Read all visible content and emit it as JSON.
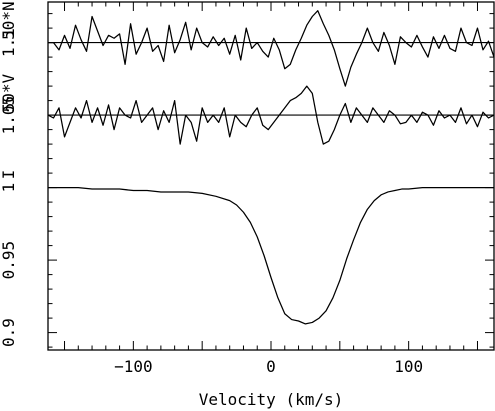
{
  "chart_data": {
    "type": "line",
    "xlabel": "Velocity (km/s)",
    "xlim": [
      -162,
      162
    ],
    "ylim": [
      0.888,
      1.128
    ],
    "x_ticks": [
      -100,
      0,
      100
    ],
    "y_ticks": [
      0.9,
      0.95,
      1,
      1.05,
      1.1
    ],
    "x_tick_labels": [
      "−100",
      "0",
      "100"
    ],
    "y_tick_labels": [
      "0.9",
      "0.95",
      "1",
      "1.05",
      "1.1"
    ],
    "grid": false,
    "reference_lines": [
      {
        "y": 1.1,
        "label": "50*N"
      },
      {
        "y": 1.05,
        "label": "50*V"
      }
    ],
    "curve_labels": [
      {
        "label": "I",
        "y": 1.0
      }
    ],
    "series": [
      {
        "x": [
          -162,
          -158,
          -154,
          -150,
          -146,
          -142,
          -138,
          -134,
          -130,
          -126,
          -122,
          -118,
          -114,
          -110,
          -106,
          -102,
          -98,
          -94,
          -90,
          -86,
          -82,
          -78,
          -74,
          -70,
          -66,
          -62,
          -58,
          -54,
          -50,
          -46,
          -42,
          -38,
          -34,
          -30,
          -26,
          -22,
          -18,
          -14,
          -10,
          -6,
          -2,
          2,
          6,
          10,
          14,
          18,
          22,
          26,
          30,
          34,
          38,
          42,
          46,
          50,
          54,
          58,
          62,
          66,
          70,
          74,
          78,
          82,
          86,
          90,
          94,
          98,
          102,
          106,
          110,
          114,
          118,
          122,
          126,
          130,
          134,
          138,
          142,
          146,
          150,
          154,
          158,
          162
        ],
        "values": [
          1.1,
          1.1,
          1.095,
          1.105,
          1.096,
          1.112,
          1.102,
          1.094,
          1.118,
          1.108,
          1.098,
          1.105,
          1.103,
          1.106,
          1.085,
          1.113,
          1.092,
          1.1,
          1.11,
          1.094,
          1.098,
          1.087,
          1.112,
          1.093,
          1.102,
          1.114,
          1.095,
          1.11,
          1.1,
          1.097,
          1.104,
          1.098,
          1.103,
          1.092,
          1.105,
          1.088,
          1.11,
          1.096,
          1.1,
          1.094,
          1.09,
          1.103,
          1.095,
          1.082,
          1.085,
          1.095,
          1.103,
          1.112,
          1.118,
          1.122,
          1.113,
          1.105,
          1.095,
          1.082,
          1.07,
          1.083,
          1.092,
          1.1,
          1.11,
          1.1,
          1.094,
          1.107,
          1.098,
          1.085,
          1.104,
          1.1,
          1.097,
          1.105,
          1.097,
          1.09,
          1.104,
          1.096,
          1.105,
          1.096,
          1.094,
          1.11,
          1.1,
          1.098,
          1.11,
          1.095,
          1.101,
          1.09
        ]
      },
      {
        "x": [
          -162,
          -158,
          -154,
          -150,
          -146,
          -142,
          -138,
          -134,
          -130,
          -126,
          -122,
          -118,
          -114,
          -110,
          -106,
          -102,
          -98,
          -94,
          -90,
          -86,
          -82,
          -78,
          -74,
          -70,
          -66,
          -62,
          -58,
          -54,
          -50,
          -46,
          -42,
          -38,
          -34,
          -30,
          -26,
          -22,
          -18,
          -14,
          -10,
          -6,
          -2,
          2,
          6,
          10,
          14,
          18,
          22,
          26,
          30,
          34,
          38,
          42,
          46,
          50,
          54,
          58,
          62,
          66,
          70,
          74,
          78,
          82,
          86,
          90,
          94,
          98,
          102,
          106,
          110,
          114,
          118,
          122,
          126,
          130,
          134,
          138,
          142,
          146,
          150,
          154,
          158,
          162
        ],
        "values": [
          1.05,
          1.048,
          1.055,
          1.035,
          1.045,
          1.055,
          1.048,
          1.06,
          1.045,
          1.055,
          1.043,
          1.057,
          1.04,
          1.055,
          1.05,
          1.048,
          1.06,
          1.045,
          1.05,
          1.055,
          1.04,
          1.053,
          1.045,
          1.06,
          1.03,
          1.05,
          1.045,
          1.032,
          1.055,
          1.045,
          1.05,
          1.045,
          1.055,
          1.035,
          1.05,
          1.045,
          1.042,
          1.05,
          1.055,
          1.043,
          1.04,
          1.045,
          1.05,
          1.055,
          1.06,
          1.062,
          1.065,
          1.07,
          1.065,
          1.045,
          1.03,
          1.032,
          1.04,
          1.05,
          1.058,
          1.045,
          1.055,
          1.05,
          1.045,
          1.055,
          1.05,
          1.045,
          1.053,
          1.05,
          1.044,
          1.045,
          1.05,
          1.045,
          1.052,
          1.05,
          1.043,
          1.053,
          1.048,
          1.05,
          1.045,
          1.055,
          1.044,
          1.05,
          1.042,
          1.052,
          1.048,
          1.05
        ]
      },
      {
        "x": [
          -162,
          -150,
          -140,
          -130,
          -120,
          -110,
          -100,
          -90,
          -80,
          -70,
          -60,
          -50,
          -40,
          -30,
          -25,
          -20,
          -15,
          -10,
          -5,
          0,
          5,
          10,
          15,
          20,
          25,
          30,
          35,
          40,
          45,
          50,
          55,
          60,
          65,
          70,
          75,
          80,
          85,
          90,
          95,
          100,
          110,
          120,
          130,
          140,
          150,
          162
        ],
        "values": [
          1.0,
          1.0,
          1.0,
          0.999,
          0.999,
          0.999,
          0.998,
          0.998,
          0.997,
          0.997,
          0.997,
          0.996,
          0.994,
          0.991,
          0.988,
          0.983,
          0.976,
          0.966,
          0.953,
          0.938,
          0.924,
          0.913,
          0.909,
          0.908,
          0.906,
          0.907,
          0.91,
          0.915,
          0.924,
          0.936,
          0.951,
          0.964,
          0.976,
          0.985,
          0.991,
          0.995,
          0.997,
          0.998,
          0.999,
          0.999,
          1.0,
          1.0,
          1.0,
          1.0,
          1.0,
          1.0
        ]
      }
    ]
  }
}
